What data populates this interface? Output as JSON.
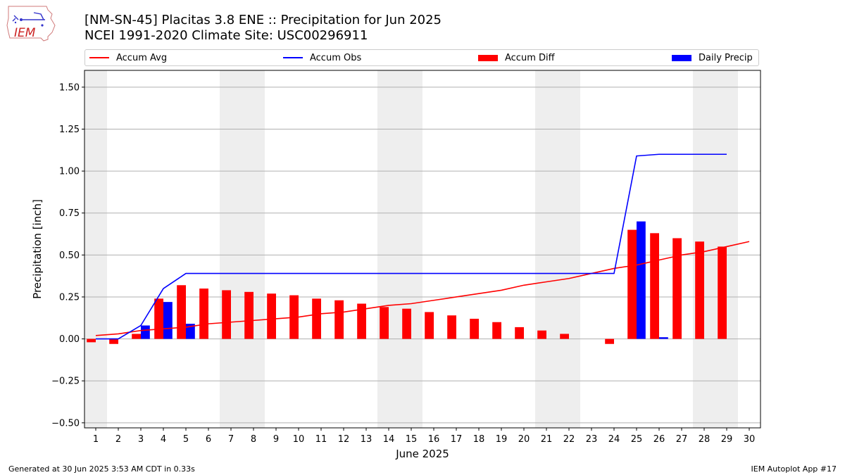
{
  "header": {
    "title_line1": "[NM-SN-45] Placitas 3.8 ENE :: Precipitation for Jun 2025",
    "title_line2": "NCEI 1991-2020 Climate Site: USC00296911"
  },
  "logo": {
    "text": "IEM",
    "icon": "iowa-state-map-logo-icon"
  },
  "legend": {
    "placement": "top, above plot",
    "items": [
      {
        "label": "Accum Avg",
        "color": "#ff0000",
        "kind": "line"
      },
      {
        "label": "Accum Obs",
        "color": "#0000ff",
        "kind": "line"
      },
      {
        "label": "Accum Diff",
        "color": "#ff0000",
        "kind": "bar"
      },
      {
        "label": "Daily Precip",
        "color": "#0000ff",
        "kind": "bar"
      }
    ]
  },
  "footer": {
    "left": "Generated at 30 Jun 2025 3:53 AM CDT in 0.33s",
    "right": "IEM Autoplot App #17"
  },
  "chart_data": {
    "type": "bar",
    "xlabel": "June 2025",
    "ylabel": "Precipitation [inch]",
    "xlim": [
      0.5,
      30.5
    ],
    "ylim": [
      -0.53,
      1.6
    ],
    "yticks": [
      -0.5,
      -0.25,
      0.0,
      0.25,
      0.5,
      0.75,
      1.0,
      1.25,
      1.5
    ],
    "ytick_labels": [
      "−0.50",
      "−0.25",
      "0.00",
      "0.25",
      "0.50",
      "0.75",
      "1.00",
      "1.25",
      "1.50"
    ],
    "x": [
      1,
      2,
      3,
      4,
      5,
      6,
      7,
      8,
      9,
      10,
      11,
      12,
      13,
      14,
      15,
      16,
      17,
      18,
      19,
      20,
      21,
      22,
      23,
      24,
      25,
      26,
      27,
      28,
      29,
      30
    ],
    "xtick_labels": [
      "1",
      "2",
      "3",
      "4",
      "5",
      "6",
      "7",
      "8",
      "9",
      "10",
      "11",
      "12",
      "13",
      "14",
      "15",
      "16",
      "17",
      "18",
      "19",
      "20",
      "21",
      "22",
      "23",
      "24",
      "25",
      "26",
      "27",
      "28",
      "29",
      "30"
    ],
    "grid": "horizontal",
    "weekend_shading": [
      [
        0.5,
        1.5
      ],
      [
        6.5,
        8.5
      ],
      [
        13.5,
        15.5
      ],
      [
        20.5,
        22.5
      ],
      [
        27.5,
        29.5
      ]
    ],
    "series": [
      {
        "name": "Accum Avg",
        "type": "line",
        "color": "#ff0000",
        "x": [
          1,
          2,
          3,
          4,
          5,
          6,
          7,
          8,
          9,
          10,
          11,
          12,
          13,
          14,
          15,
          16,
          17,
          18,
          19,
          20,
          21,
          22,
          23,
          24,
          25,
          26,
          27,
          28,
          29,
          30
        ],
        "values": [
          0.02,
          0.03,
          0.05,
          0.06,
          0.07,
          0.09,
          0.1,
          0.11,
          0.12,
          0.13,
          0.15,
          0.16,
          0.18,
          0.2,
          0.21,
          0.23,
          0.25,
          0.27,
          0.29,
          0.32,
          0.34,
          0.36,
          0.39,
          0.42,
          0.44,
          0.47,
          0.5,
          0.52,
          0.55,
          0.58
        ]
      },
      {
        "name": "Accum Obs",
        "type": "line",
        "color": "#0000ff",
        "x": [
          1,
          2,
          3,
          4,
          5,
          6,
          7,
          8,
          9,
          10,
          11,
          12,
          13,
          14,
          15,
          16,
          17,
          18,
          19,
          20,
          21,
          22,
          23,
          24,
          25,
          26,
          27,
          28,
          29
        ],
        "values": [
          0.0,
          0.0,
          0.08,
          0.3,
          0.39,
          0.39,
          0.39,
          0.39,
          0.39,
          0.39,
          0.39,
          0.39,
          0.39,
          0.39,
          0.39,
          0.39,
          0.39,
          0.39,
          0.39,
          0.39,
          0.39,
          0.39,
          0.39,
          0.39,
          1.09,
          1.1,
          1.1,
          1.1,
          1.1
        ]
      },
      {
        "name": "Accum Diff",
        "type": "bar",
        "color": "#ff0000",
        "offset": -0.2,
        "x": [
          1,
          2,
          3,
          4,
          5,
          6,
          7,
          8,
          9,
          10,
          11,
          12,
          13,
          14,
          15,
          16,
          17,
          18,
          19,
          20,
          21,
          22,
          23,
          24,
          25,
          26,
          27,
          28,
          29
        ],
        "values": [
          -0.02,
          -0.03,
          0.03,
          0.24,
          0.32,
          0.3,
          0.29,
          0.28,
          0.27,
          0.26,
          0.24,
          0.23,
          0.21,
          0.19,
          0.18,
          0.16,
          0.14,
          0.12,
          0.1,
          0.07,
          0.05,
          0.03,
          0.0,
          -0.03,
          0.65,
          0.63,
          0.6,
          0.58,
          0.55
        ]
      },
      {
        "name": "Daily Precip",
        "type": "bar",
        "color": "#0000ff",
        "offset": 0.2,
        "x": [
          1,
          2,
          3,
          4,
          5,
          6,
          7,
          8,
          9,
          10,
          11,
          12,
          13,
          14,
          15,
          16,
          17,
          18,
          19,
          20,
          21,
          22,
          23,
          24,
          25,
          26,
          27,
          28,
          29
        ],
        "values": [
          0.0,
          0.0,
          0.08,
          0.22,
          0.09,
          0.0,
          0.0,
          0.0,
          0.0,
          0.0,
          0.0,
          0.0,
          0.0,
          0.0,
          0.0,
          0.0,
          0.0,
          0.0,
          0.0,
          0.0,
          0.0,
          0.0,
          0.0,
          0.0,
          0.7,
          0.01,
          0.0,
          0.0,
          0.0
        ]
      }
    ]
  }
}
